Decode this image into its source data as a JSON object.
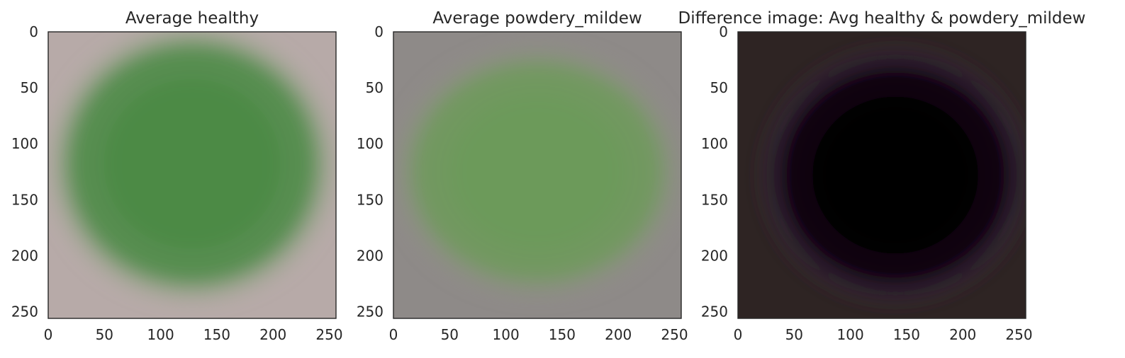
{
  "figure": {
    "background": "#ffffff"
  },
  "chart_data": [
    {
      "type": "heatmap",
      "title": "Average healthy",
      "xlabel": "",
      "ylabel": "",
      "xlim": [
        0,
        256
      ],
      "ylim": [
        256,
        0
      ],
      "xticks": [
        0,
        50,
        100,
        150,
        200,
        250
      ],
      "yticks": [
        0,
        50,
        100,
        150,
        200,
        250
      ],
      "grid": false,
      "image": {
        "description_colors": {
          "background": "#b7aaa8",
          "blob": "#4a8a45",
          "blob_edge": "#8fa284"
        },
        "blob_center": [
          128,
          118
        ],
        "blob_radius": [
          112,
          108
        ]
      }
    },
    {
      "type": "heatmap",
      "title": "Average powdery_mildew",
      "xlabel": "",
      "ylabel": "",
      "xlim": [
        0,
        256
      ],
      "ylim": [
        256,
        0
      ],
      "xticks": [
        0,
        50,
        100,
        150,
        200,
        250
      ],
      "yticks": [
        0,
        50,
        100,
        150,
        200,
        250
      ],
      "grid": false,
      "image": {
        "description_colors": {
          "background": "#8e8a88",
          "blob": "#6d9a5a",
          "blob_edge": "#8c957e"
        },
        "blob_center": [
          128,
          125
        ],
        "blob_radius": [
          112,
          98
        ]
      }
    },
    {
      "type": "heatmap",
      "title": "Difference image: Avg healthy & powdery_mildew",
      "xlabel": "",
      "ylabel": "",
      "xlim": [
        0,
        256
      ],
      "ylim": [
        256,
        0
      ],
      "xticks": [
        0,
        50,
        100,
        150,
        200,
        250
      ],
      "yticks": [
        0,
        50,
        100,
        150,
        200,
        250
      ],
      "grid": false,
      "image": {
        "description_colors": {
          "background": "#2e2423",
          "blob": "#030203",
          "blob_edge": "#3a2a44"
        },
        "blob_center": [
          140,
          128
        ],
        "blob_radius": [
          105,
          100
        ]
      }
    }
  ]
}
